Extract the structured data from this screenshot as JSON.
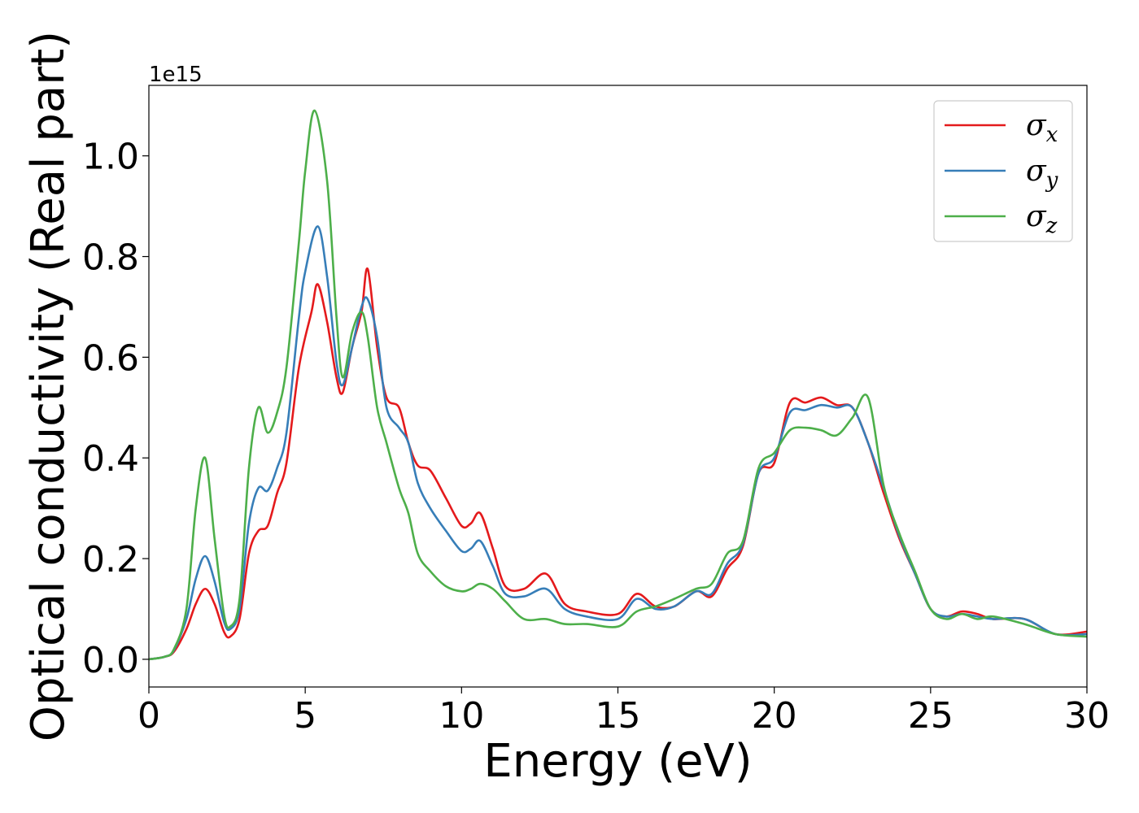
{
  "chart_data": {
    "type": "line",
    "title": "",
    "xlabel": "Energy (eV)",
    "ylabel": "Optical conductivity (Real part)",
    "y_offset_label": "1e15",
    "xlim": [
      0,
      30
    ],
    "ylim": [
      -0.055,
      1.14
    ],
    "y_scale_factor": 1000000000000000.0,
    "xticks": [
      0,
      5,
      10,
      15,
      20,
      25,
      30
    ],
    "xtick_labels": [
      "0",
      "5",
      "10",
      "15",
      "20",
      "25",
      "30"
    ],
    "yticks": [
      0.0,
      0.2,
      0.4,
      0.6,
      0.8,
      1.0
    ],
    "ytick_labels": [
      "0.0",
      "0.2",
      "0.4",
      "0.6",
      "0.8",
      "1.0"
    ],
    "grid": false,
    "legend_position": "top-right",
    "series": [
      {
        "name": "σx",
        "name_main": "σ",
        "name_sub": "x",
        "color": "#e41a1c",
        "x": [
          0,
          0.5,
          0.8,
          1.2,
          1.5,
          1.8,
          2.1,
          2.4,
          2.6,
          2.9,
          3.2,
          3.5,
          3.8,
          4.1,
          4.4,
          4.8,
          5.2,
          5.4,
          5.7,
          6.0,
          6.2,
          6.5,
          6.8,
          7.0,
          7.3,
          7.6,
          8.0,
          8.3,
          8.6,
          9.0,
          9.5,
          10.0,
          10.3,
          10.6,
          11.0,
          11.4,
          12.0,
          12.7,
          13.3,
          14.0,
          15.0,
          15.6,
          16.2,
          16.8,
          17.5,
          18.0,
          18.5,
          19.0,
          19.5,
          20.0,
          20.5,
          21.0,
          21.5,
          22.0,
          22.5,
          23.0,
          23.5,
          24.0,
          24.5,
          25.0,
          25.5,
          26.0,
          26.5,
          27.0,
          28.0,
          29.0,
          30.0
        ],
        "y": [
          0.0,
          0.005,
          0.015,
          0.06,
          0.11,
          0.14,
          0.11,
          0.055,
          0.045,
          0.08,
          0.21,
          0.255,
          0.265,
          0.33,
          0.39,
          0.58,
          0.69,
          0.745,
          0.67,
          0.56,
          0.53,
          0.62,
          0.69,
          0.775,
          0.62,
          0.52,
          0.5,
          0.43,
          0.385,
          0.375,
          0.32,
          0.265,
          0.27,
          0.29,
          0.22,
          0.145,
          0.14,
          0.17,
          0.11,
          0.095,
          0.09,
          0.13,
          0.105,
          0.105,
          0.135,
          0.125,
          0.18,
          0.225,
          0.37,
          0.39,
          0.51,
          0.51,
          0.52,
          0.505,
          0.5,
          0.43,
          0.33,
          0.24,
          0.17,
          0.1,
          0.085,
          0.095,
          0.09,
          0.08,
          0.08,
          0.05,
          0.055
        ]
      },
      {
        "name": "σy",
        "name_main": "σ",
        "name_sub": "y",
        "color": "#377eb8",
        "x": [
          0,
          0.5,
          0.8,
          1.2,
          1.5,
          1.8,
          2.1,
          2.4,
          2.6,
          2.9,
          3.2,
          3.5,
          3.8,
          4.1,
          4.4,
          4.8,
          5.0,
          5.4,
          5.7,
          6.0,
          6.2,
          6.5,
          6.8,
          7.0,
          7.3,
          7.6,
          8.0,
          8.3,
          8.6,
          9.0,
          9.5,
          10.0,
          10.3,
          10.6,
          11.0,
          11.4,
          12.0,
          12.7,
          13.3,
          14.0,
          15.0,
          15.6,
          16.2,
          16.8,
          17.5,
          18.0,
          18.5,
          19.0,
          19.5,
          20.0,
          20.5,
          21.0,
          21.5,
          22.0,
          22.5,
          23.0,
          23.5,
          24.0,
          24.5,
          25.0,
          25.5,
          26.0,
          26.5,
          27.0,
          28.0,
          29.0,
          30.0
        ],
        "y": [
          0.0,
          0.005,
          0.018,
          0.08,
          0.16,
          0.205,
          0.155,
          0.075,
          0.06,
          0.1,
          0.27,
          0.34,
          0.335,
          0.38,
          0.45,
          0.68,
          0.77,
          0.86,
          0.76,
          0.59,
          0.545,
          0.62,
          0.7,
          0.715,
          0.64,
          0.5,
          0.46,
          0.43,
          0.35,
          0.3,
          0.255,
          0.215,
          0.22,
          0.235,
          0.185,
          0.13,
          0.125,
          0.14,
          0.1,
          0.085,
          0.08,
          0.12,
          0.1,
          0.105,
          0.135,
          0.13,
          0.19,
          0.23,
          0.37,
          0.4,
          0.49,
          0.495,
          0.505,
          0.5,
          0.5,
          0.43,
          0.34,
          0.245,
          0.17,
          0.1,
          0.085,
          0.09,
          0.085,
          0.08,
          0.08,
          0.05,
          0.05
        ]
      },
      {
        "name": "σz",
        "name_main": "σ",
        "name_sub": "z",
        "color": "#4daf4a",
        "x": [
          0,
          0.5,
          0.8,
          1.2,
          1.5,
          1.8,
          2.1,
          2.4,
          2.6,
          2.9,
          3.2,
          3.5,
          3.8,
          4.1,
          4.4,
          4.8,
          5.0,
          5.3,
          5.7,
          6.0,
          6.2,
          6.5,
          6.8,
          7.0,
          7.3,
          7.6,
          8.0,
          8.3,
          8.6,
          9.0,
          9.5,
          10.0,
          10.3,
          10.6,
          11.0,
          11.4,
          12.0,
          12.7,
          13.3,
          14.0,
          15.0,
          15.6,
          16.2,
          16.8,
          17.5,
          18.0,
          18.5,
          19.0,
          19.5,
          20.0,
          20.5,
          21.0,
          21.5,
          22.0,
          22.5,
          23.0,
          23.5,
          24.0,
          24.5,
          25.0,
          25.5,
          26.0,
          26.5,
          27.0,
          28.0,
          29.0,
          30.0
        ],
        "y": [
          0.0,
          0.005,
          0.02,
          0.1,
          0.3,
          0.4,
          0.24,
          0.09,
          0.065,
          0.12,
          0.38,
          0.5,
          0.45,
          0.49,
          0.58,
          0.83,
          0.97,
          1.09,
          0.95,
          0.68,
          0.56,
          0.65,
          0.69,
          0.64,
          0.5,
          0.43,
          0.34,
          0.29,
          0.21,
          0.175,
          0.145,
          0.135,
          0.14,
          0.15,
          0.14,
          0.115,
          0.08,
          0.08,
          0.07,
          0.07,
          0.065,
          0.095,
          0.105,
          0.12,
          0.14,
          0.15,
          0.21,
          0.235,
          0.38,
          0.41,
          0.455,
          0.46,
          0.455,
          0.445,
          0.48,
          0.52,
          0.345,
          0.25,
          0.175,
          0.1,
          0.08,
          0.09,
          0.08,
          0.085,
          0.07,
          0.05,
          0.045
        ]
      }
    ]
  }
}
